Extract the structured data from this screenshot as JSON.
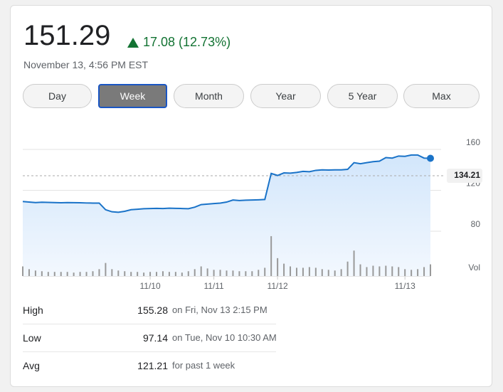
{
  "quote": {
    "price": "151.29",
    "change": "17.08 (12.73%)",
    "timestamp": "November 13, 4:56 PM EST"
  },
  "tabs": {
    "items": [
      "Day",
      "Week",
      "Month",
      "Year",
      "5 Year",
      "Max"
    ],
    "selected": 1
  },
  "chart_data": {
    "type": "line",
    "ylim": [
      40,
      170
    ],
    "yticks": [
      80,
      120,
      160
    ],
    "xlim": [
      0,
      64
    ],
    "xticks": [
      {
        "value": 20,
        "label": "11/10"
      },
      {
        "value": 30,
        "label": "11/11"
      },
      {
        "value": 40,
        "label": "11/12"
      },
      {
        "value": 60,
        "label": "11/13"
      }
    ],
    "previous_close": 134.21,
    "series": [
      {
        "color": "#1a73c8",
        "values": [
          109,
          108.5,
          108,
          108.3,
          108.2,
          108,
          107.8,
          108,
          107.9,
          107.8,
          107.6,
          107.5,
          107.5,
          101,
          99,
          98.5,
          99.5,
          101,
          101.5,
          102,
          102.2,
          102.3,
          102.2,
          102.5,
          102.3,
          102.2,
          102,
          103.5,
          106,
          106.5,
          107,
          107.5,
          108.5,
          110.5,
          110,
          110.3,
          110.5,
          110.7,
          111,
          136.5,
          134.5,
          137,
          136.8,
          137.5,
          138.5,
          138.2,
          139.5,
          140,
          139.8,
          140,
          140,
          140.5,
          147,
          146,
          147,
          148,
          148.5,
          152,
          151.5,
          153.5,
          153.2,
          154.5,
          154.5,
          151.5,
          151.29
        ]
      }
    ],
    "volume_label": "Vol",
    "volume_lim": [
      0,
      60
    ],
    "volume": [
      14,
      10,
      8,
      7,
      6,
      6,
      6,
      6,
      5,
      6,
      6,
      7,
      10,
      19,
      10,
      8,
      7,
      6,
      6,
      5,
      6,
      6,
      7,
      6,
      6,
      5,
      7,
      10,
      14,
      11,
      9,
      9,
      8,
      8,
      7,
      7,
      7,
      9,
      12,
      58,
      26,
      18,
      14,
      12,
      12,
      13,
      12,
      10,
      9,
      8,
      10,
      21,
      37,
      17,
      13,
      15,
      14,
      15,
      14,
      13,
      10,
      9,
      10,
      13,
      17
    ]
  },
  "stats": {
    "rows": [
      [
        "High",
        155.28,
        "on Fri, Nov 13 2:15 PM"
      ],
      [
        "Low",
        97.14,
        "on Tue, Nov 10 10:30 AM"
      ],
      [
        "Avg",
        121.21,
        "for past 1 week"
      ]
    ]
  }
}
